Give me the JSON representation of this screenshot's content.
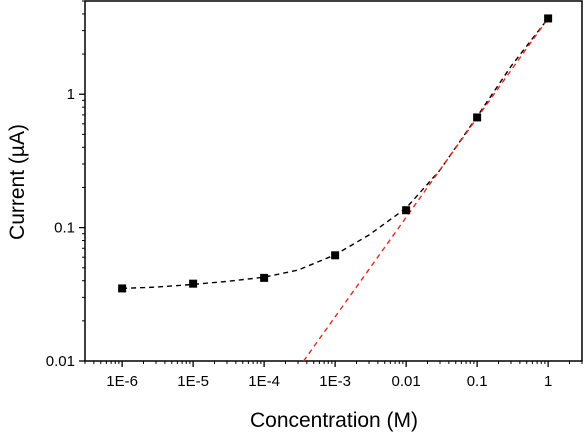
{
  "chart_data": {
    "type": "scatter",
    "xlabel": "Concentration (M)",
    "ylabel": "Current (µA)",
    "x_scale": "log",
    "y_scale": "log",
    "xlim": [
      3e-07,
      3
    ],
    "ylim": [
      0.01,
      5
    ],
    "x_ticks": [
      {
        "value": 1e-06,
        "label": "1E-6"
      },
      {
        "value": 1e-05,
        "label": "1E-5"
      },
      {
        "value": 0.0001,
        "label": "1E-4"
      },
      {
        "value": 0.001,
        "label": "1E-3"
      },
      {
        "value": 0.01,
        "label": "0.01"
      },
      {
        "value": 0.1,
        "label": "0.1"
      },
      {
        "value": 1,
        "label": "1"
      }
    ],
    "y_ticks": [
      {
        "value": 0.01,
        "label": "0.01"
      },
      {
        "value": 0.1,
        "label": "0.1"
      },
      {
        "value": 1,
        "label": "1"
      }
    ],
    "grid": false,
    "series": [
      {
        "style": "markers",
        "marker": "square",
        "color": "#000000",
        "x": [
          1e-06,
          1e-05,
          0.0001,
          0.001,
          0.01,
          0.1,
          1
        ],
        "y": [
          0.035,
          0.038,
          0.042,
          0.062,
          0.135,
          0.67,
          3.7
        ]
      },
      {
        "style": "dashed-line",
        "color": "#000000",
        "x": [
          1e-06,
          3e-06,
          1e-05,
          3e-05,
          0.0001,
          0.0003,
          0.001,
          0.003,
          0.01,
          0.03,
          0.1,
          0.3,
          1
        ],
        "y": [
          0.035,
          0.0358,
          0.0375,
          0.0395,
          0.0425,
          0.048,
          0.0625,
          0.088,
          0.14,
          0.27,
          0.68,
          1.62,
          3.7
        ]
      },
      {
        "style": "dashed-line",
        "color": "#e8281e",
        "x": [
          0.00036,
          1
        ],
        "y": [
          0.01,
          3.7
        ]
      }
    ]
  }
}
